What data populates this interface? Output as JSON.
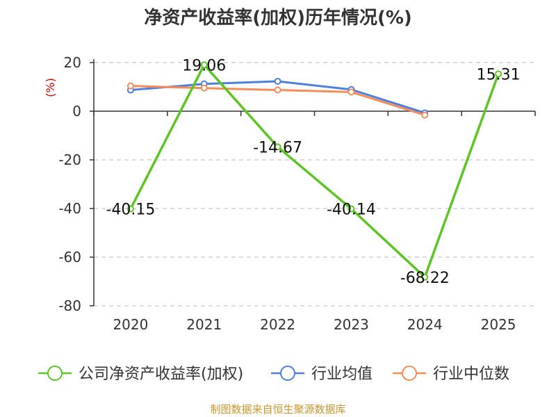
{
  "chart_data": {
    "type": "line",
    "title": "净资产收益率(加权)历年情况(%)",
    "unit": "(%)",
    "categories": [
      "2020",
      "2021",
      "2022",
      "2023",
      "2024",
      "2025"
    ],
    "ylim": [
      -80,
      20
    ],
    "yticks": [
      20,
      0,
      -20,
      -40,
      -60,
      -80
    ],
    "grid": true,
    "legend_position": "bottom",
    "series": [
      {
        "name": "公司净资产收益率(加权)",
        "color": "#5cc424",
        "values": [
          -40.15,
          19.06,
          -14.67,
          -40.14,
          -68.22,
          15.31
        ],
        "labels": [
          "-40.15",
          "19.06",
          "-14.67",
          "-40.14",
          "-68.22",
          "15.31"
        ]
      },
      {
        "name": "行业均值",
        "color": "#4f7fdc",
        "values": [
          8.7,
          11.2,
          12.3,
          8.9,
          -0.7,
          null
        ]
      },
      {
        "name": "行业中位数",
        "color": "#f58c5a",
        "values": [
          10.4,
          9.5,
          8.7,
          7.9,
          -1.6,
          null
        ]
      }
    ],
    "source": "制图数据来自恒生聚源数据库"
  }
}
